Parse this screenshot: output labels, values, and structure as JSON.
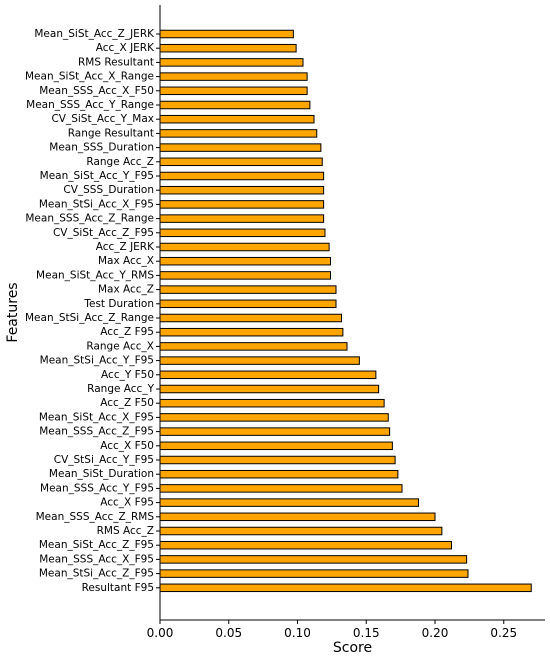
{
  "chart_data": {
    "type": "bar",
    "orientation": "horizontal",
    "xlabel": "Score",
    "ylabel": "Features",
    "xlim": [
      0,
      0.28
    ],
    "xticks": [
      "0.00",
      "0.05",
      "0.10",
      "0.15",
      "0.20",
      "0.25"
    ],
    "grid": false,
    "bar_color": "#FFA500",
    "edge_color": "#000000",
    "categories": [
      "Mean_SiSt_Acc_Z_JERK",
      "Acc_X JERK",
      "RMS Resultant",
      "Mean_SiSt_Acc_X_Range",
      "Mean_SSS_Acc_X_F50",
      "Mean_SSS_Acc_Y_Range",
      "CV_SiSt_Acc_Y_Max",
      "Range Resultant",
      "Mean_SSS_Duration",
      "Range Acc_Z",
      "Mean_SiSt_Acc_Y_F95",
      "CV_SSS_Duration",
      "Mean_StSi_Acc_X_F95",
      "Mean_SSS_Acc_Z_Range",
      "CV_SiSt_Acc_Z_F95",
      "Acc_Z JERK",
      "Max Acc_X",
      "Mean_SiSt_Acc_Y_RMS",
      "Max Acc_Z",
      "Test Duration",
      "Mean_StSi_Acc_Z_Range",
      "Acc_Z F95",
      "Range Acc_X",
      "Mean_StSi_Acc_Y_F95",
      "Acc_Y F50",
      "Range Acc_Y",
      "Acc_Z F50",
      "Mean_SiSt_Acc_X_F95",
      "Mean_SSS_Acc_Z_F95",
      "Acc_X F50",
      "CV_StSi_Acc_Y_F95",
      "Mean_SiSt_Duration",
      "Mean_SSS_Acc_Y_F95",
      "Acc_X F95",
      "Mean_SSS_Acc_Z_RMS",
      "RMS Acc_Z",
      "Mean_SiSt_Acc_Z_F95",
      "Mean_SSS_Acc_X_F95",
      "Mean_StSi_Acc_Z_F95",
      "Resultant F95"
    ],
    "values": [
      0.097,
      0.099,
      0.104,
      0.107,
      0.107,
      0.109,
      0.112,
      0.114,
      0.117,
      0.118,
      0.119,
      0.119,
      0.119,
      0.119,
      0.12,
      0.123,
      0.124,
      0.124,
      0.128,
      0.128,
      0.132,
      0.133,
      0.136,
      0.145,
      0.157,
      0.159,
      0.163,
      0.166,
      0.167,
      0.169,
      0.171,
      0.173,
      0.176,
      0.188,
      0.2,
      0.205,
      0.212,
      0.223,
      0.224,
      0.27
    ]
  }
}
